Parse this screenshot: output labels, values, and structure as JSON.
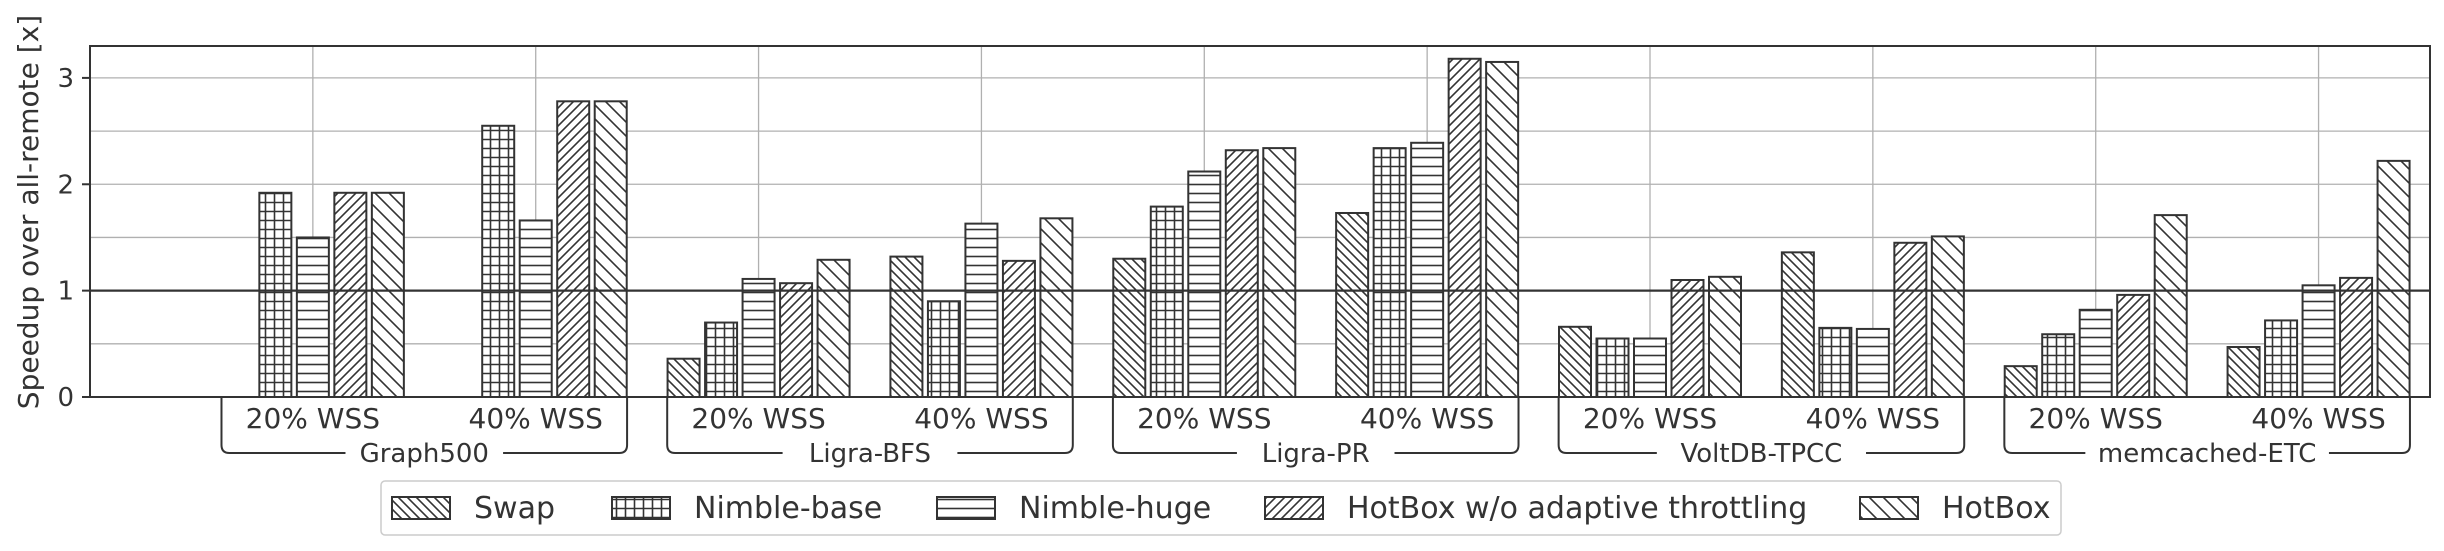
{
  "chart_data": {
    "type": "bar",
    "ylabel": "Speedup over all-remote [x]",
    "ylim": [
      0,
      3.3
    ],
    "yticks": [
      0,
      1,
      2,
      3
    ],
    "grid": true,
    "reference_line": 1,
    "legend_position": "bottom-center",
    "groups": [
      {
        "benchmark": "Graph500",
        "condition": "20% WSS",
        "values": [
          0,
          1.92,
          1.5,
          1.92,
          1.92
        ]
      },
      {
        "benchmark": "Graph500",
        "condition": "40% WSS",
        "values": [
          0,
          2.55,
          1.66,
          2.78,
          2.78
        ]
      },
      {
        "benchmark": "Ligra-BFS",
        "condition": "20% WSS",
        "values": [
          0.36,
          0.7,
          1.11,
          1.07,
          1.29
        ]
      },
      {
        "benchmark": "Ligra-BFS",
        "condition": "40% WSS",
        "values": [
          1.32,
          0.9,
          1.63,
          1.28,
          1.68
        ]
      },
      {
        "benchmark": "Ligra-PR",
        "condition": "20% WSS",
        "values": [
          1.3,
          1.79,
          2.12,
          2.32,
          2.34
        ]
      },
      {
        "benchmark": "Ligra-PR",
        "condition": "40% WSS",
        "values": [
          1.73,
          2.34,
          2.39,
          3.18,
          3.15
        ]
      },
      {
        "benchmark": "VoltDB-TPCC",
        "condition": "20% WSS",
        "values": [
          0.66,
          0.55,
          0.55,
          1.1,
          1.13
        ]
      },
      {
        "benchmark": "VoltDB-TPCC",
        "condition": "40% WSS",
        "values": [
          1.36,
          0.65,
          0.64,
          1.45,
          1.51
        ]
      },
      {
        "benchmark": "memcached-ETC",
        "condition": "20% WSS",
        "values": [
          0.29,
          0.59,
          0.82,
          0.96,
          1.71
        ]
      },
      {
        "benchmark": "memcached-ETC",
        "condition": "40% WSS",
        "values": [
          0.47,
          0.72,
          1.05,
          1.12,
          2.22
        ]
      }
    ],
    "benchmarks": [
      "Graph500",
      "Ligra-BFS",
      "Ligra-PR",
      "VoltDB-TPCC",
      "memcached-ETC"
    ],
    "series": [
      {
        "name": "Swap",
        "pattern": "diag-back"
      },
      {
        "name": "Nimble-base",
        "pattern": "grid"
      },
      {
        "name": "Nimble-huge",
        "pattern": "horizontal"
      },
      {
        "name": "HotBox w/o adaptive throttling",
        "pattern": "diag-fwd"
      },
      {
        "name": "HotBox",
        "pattern": "diag-back-wide"
      }
    ],
    "colors": {
      "bar_edge": "#333333",
      "bar_fill": "#ffffff",
      "grid": "#b0b0b0",
      "axis": "#333333"
    }
  }
}
